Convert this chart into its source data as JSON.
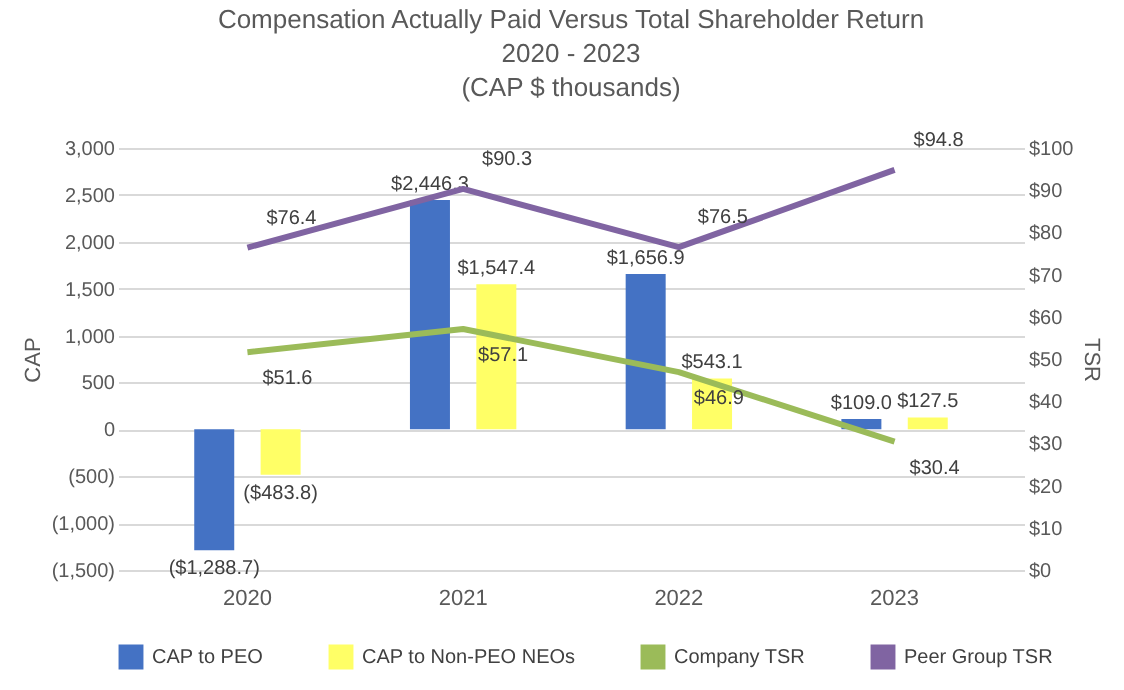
{
  "chart_data": {
    "type": "bar",
    "title": "Compensation Actually Paid Versus Total Shareholder Return",
    "subtitle": "2020 - 2023",
    "annotations": [
      "(CAP $ thousands)"
    ],
    "ylabel": "CAP",
    "y2label": "TSR",
    "categories": [
      "2020",
      "2021",
      "2022",
      "2023"
    ],
    "series": [
      {
        "name": "CAP to PEO",
        "color": "#4472c4",
        "values": [
          -1288.7,
          2446.3,
          1656.9,
          109.0
        ],
        "value_labels": [
          "($1,288.7)",
          "$2,446.3",
          "$1,656.9",
          "$109.0"
        ]
      },
      {
        "name": "CAP to Non-PEO NEOs",
        "color": "#ffff66",
        "values": [
          -483.8,
          1547.4,
          543.1,
          127.5
        ],
        "value_labels": [
          "($483.8)",
          "$1,547.4",
          "$543.1",
          "$127.5"
        ]
      },
      {
        "name": "Company TSR",
        "type": "line",
        "axis": "y2",
        "color": "#9bbb59",
        "values": [
          51.6,
          57.1,
          46.9,
          30.4
        ],
        "value_labels": [
          "$51.6",
          "$57.1",
          "$46.9",
          "$30.4"
        ]
      },
      {
        "name": "Peer Group TSR",
        "type": "line",
        "axis": "y2",
        "color": "#8064a2",
        "values": [
          76.4,
          90.3,
          76.5,
          94.8
        ],
        "value_labels": [
          "$76.4",
          "$90.3",
          "$76.5",
          "$94.8"
        ]
      }
    ],
    "ylim": [
      -1500,
      3000
    ],
    "yticks": [
      {
        "value": -1500,
        "label": "(1,500)"
      },
      {
        "value": -1000,
        "label": "(1,000)"
      },
      {
        "value": -500,
        "label": "(500)"
      },
      0,
      {
        "value": 500,
        "label": "500"
      },
      {
        "value": 1000,
        "label": "1,000"
      },
      {
        "value": 1500,
        "label": "1,500"
      },
      {
        "value": 2000,
        "label": "2,000"
      },
      {
        "value": 2500,
        "label": "2,500"
      },
      {
        "value": 3000,
        "label": "3,000"
      }
    ],
    "y2lim": [
      0,
      100
    ],
    "y2ticks": [
      {
        "value": 0,
        "label": "$0"
      },
      {
        "value": 10,
        "label": "$10"
      },
      {
        "value": 20,
        "label": "$20"
      },
      {
        "value": 30,
        "label": "$30"
      },
      {
        "value": 40,
        "label": "$40"
      },
      {
        "value": 50,
        "label": "$50"
      },
      {
        "value": 60,
        "label": "$60"
      },
      {
        "value": 70,
        "label": "$70"
      },
      {
        "value": 80,
        "label": "$80"
      },
      {
        "value": 90,
        "label": "$90"
      },
      {
        "value": 100,
        "label": "$100"
      }
    ],
    "grid": "y",
    "legend": "bottom",
    "line_style": "solid",
    "marker": "none"
  }
}
